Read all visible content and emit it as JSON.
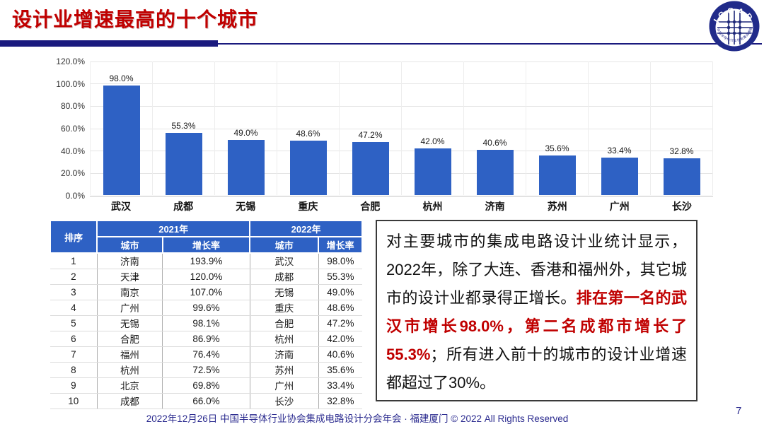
{
  "page": {
    "title": "设计业增速最高的十个城市",
    "footer": "2022年12月26日 中国半导体行业协会集成电路设计分会年会 · 福建厦门 © 2022 All Rights Reserved",
    "page_number": "7"
  },
  "logo": {
    "arc_text": "ICCAD",
    "ring_text": "中国半导体行业协会集成电路设计分会"
  },
  "colors": {
    "title_red": "#C00000",
    "rule_navy": "#1A1A7E",
    "bar_blue": "#2E61C4",
    "table_header_blue": "#2E61C4",
    "highlight_red": "#C00000",
    "footer_navy": "#2B2B8F"
  },
  "chart_data": [
    {
      "type": "bar",
      "categories": [
        "武汉",
        "成都",
        "无锡",
        "重庆",
        "合肥",
        "杭州",
        "济南",
        "苏州",
        "广州",
        "长沙"
      ],
      "values": [
        98.0,
        55.3,
        49.0,
        48.6,
        47.2,
        42.0,
        40.6,
        35.6,
        33.4,
        32.8
      ],
      "labels": [
        "98.0%",
        "55.3%",
        "49.0%",
        "48.6%",
        "47.2%",
        "42.0%",
        "40.6%",
        "35.6%",
        "33.4%",
        "32.8%"
      ],
      "title": "",
      "xlabel": "",
      "ylabel": "",
      "ylim": [
        0,
        120
      ],
      "ytick_step": 20,
      "ytick_labels": [
        "0.0%",
        "20.0%",
        "40.0%",
        "60.0%",
        "80.0%",
        "100.0%",
        "120.0%"
      ],
      "grid": true,
      "legend": false,
      "bar_color": "#2E61C4"
    },
    {
      "type": "table",
      "header": {
        "rank": "排序",
        "year2021": "2021年",
        "year2022": "2022年",
        "city": "城市",
        "growth": "增长率"
      },
      "rows": [
        [
          "1",
          "济南",
          "193.9%",
          "武汉",
          "98.0%"
        ],
        [
          "2",
          "天津",
          "120.0%",
          "成都",
          "55.3%"
        ],
        [
          "3",
          "南京",
          "107.0%",
          "无锡",
          "49.0%"
        ],
        [
          "4",
          "广州",
          "99.6%",
          "重庆",
          "48.6%"
        ],
        [
          "5",
          "无锡",
          "98.1%",
          "合肥",
          "47.2%"
        ],
        [
          "6",
          "合肥",
          "86.9%",
          "杭州",
          "42.0%"
        ],
        [
          "7",
          "福州",
          "76.4%",
          "济南",
          "40.6%"
        ],
        [
          "8",
          "杭州",
          "72.5%",
          "苏州",
          "35.6%"
        ],
        [
          "9",
          "北京",
          "69.8%",
          "广州",
          "33.4%"
        ],
        [
          "10",
          "成都",
          "66.0%",
          "长沙",
          "32.8%"
        ]
      ]
    }
  ],
  "note": {
    "part1": "对主要城市的集成电路设计业统计显示，2022年，除了大连、香港和福州外，其它城市的设计业都录得正增长。",
    "highlight": "排在第一名的武汉市增长98.0%，第二名成都市增长了55.3%",
    "part2": "；所有进入前十的城市的设计业增速都超过了30%。"
  }
}
